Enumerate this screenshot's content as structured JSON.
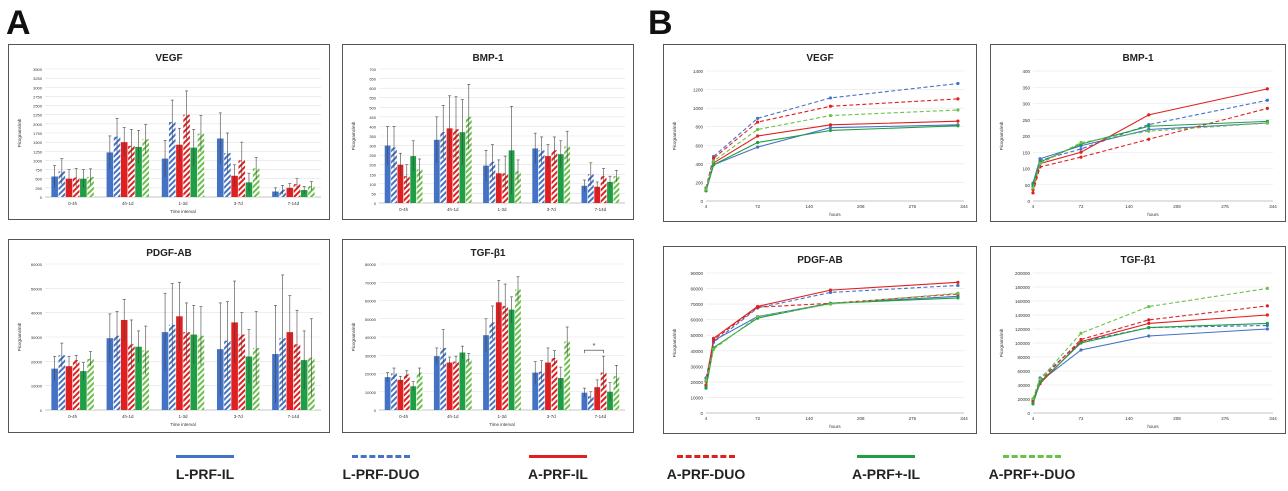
{
  "panels": {
    "a": "A",
    "b": "B"
  },
  "series_styles": [
    {
      "color": "#4472C4",
      "style": "solid"
    },
    {
      "color": "#4472C4",
      "style": "dashed"
    },
    {
      "color": "#E02020",
      "style": "solid"
    },
    {
      "color": "#E02020",
      "style": "dashed"
    },
    {
      "color": "#1E9E45",
      "style": "solid"
    },
    {
      "color": "#6CC04A",
      "style": "dashed"
    }
  ],
  "legend": [
    "L-PRF-IL",
    "L-PRF-DUO",
    "A-PRF-IL",
    "A-PRF-DUO",
    "A-PRF+-IL",
    "A-PRF+-DUO"
  ],
  "chart_data": [
    {
      "type": "bar",
      "title": "VEGF",
      "ylabel": "Picograms/mb",
      "xlabel": "Time interval",
      "categories": [
        "0-4h",
        "4h-1d",
        "1-3d",
        "3-7d",
        "7-14d"
      ],
      "ylim": [
        0,
        3500
      ],
      "yticks": [
        0,
        250,
        500,
        750,
        1000,
        1250,
        1500,
        1750,
        2000,
        2250,
        2500,
        2750,
        3000,
        3250,
        3500
      ],
      "series": [
        {
          "values": [
            560,
            1220,
            1050,
            1600,
            150
          ],
          "errors": [
            300,
            450,
            500,
            700,
            100
          ]
        },
        {
          "values": [
            700,
            1650,
            2050,
            1200,
            200
          ],
          "errors": [
            350,
            500,
            600,
            550,
            120
          ]
        },
        {
          "values": [
            500,
            1500,
            1430,
            580,
            250
          ],
          "errors": [
            250,
            400,
            450,
            300,
            120
          ]
        },
        {
          "values": [
            530,
            1400,
            2250,
            1000,
            350
          ],
          "errors": [
            250,
            450,
            650,
            500,
            150
          ]
        },
        {
          "values": [
            500,
            1370,
            1350,
            400,
            190
          ],
          "errors": [
            250,
            450,
            500,
            250,
            100
          ]
        },
        {
          "values": [
            550,
            1580,
            1730,
            780,
            300
          ],
          "errors": [
            220,
            400,
            500,
            300,
            120
          ]
        }
      ]
    },
    {
      "type": "bar",
      "title": "BMP-1",
      "ylabel": "Picograms/mb",
      "xlabel": "",
      "categories": [
        "0-4h",
        "4h-1d",
        "1-3d",
        "3-7d",
        "7-14d"
      ],
      "ylim": [
        0,
        700
      ],
      "yticks": [
        0,
        50,
        100,
        150,
        200,
        250,
        300,
        350,
        400,
        450,
        500,
        550,
        600,
        650,
        700
      ],
      "series": [
        {
          "values": [
            300,
            330,
            195,
            285,
            90
          ],
          "errors": [
            100,
            120,
            80,
            80,
            30
          ]
        },
        {
          "values": [
            290,
            370,
            215,
            275,
            150
          ],
          "errors": [
            110,
            140,
            90,
            70,
            60
          ]
        },
        {
          "values": [
            200,
            390,
            155,
            245,
            85
          ],
          "errors": [
            60,
            170,
            70,
            60,
            25
          ]
        },
        {
          "values": [
            140,
            385,
            155,
            275,
            140
          ],
          "errors": [
            60,
            170,
            90,
            70,
            40
          ]
        },
        {
          "values": [
            245,
            370,
            275,
            255,
            110
          ],
          "errors": [
            80,
            170,
            230,
            70,
            30
          ]
        },
        {
          "values": [
            175,
            450,
            165,
            295,
            140
          ],
          "errors": [
            55,
            170,
            60,
            80,
            30
          ]
        }
      ]
    },
    {
      "type": "bar",
      "title": "PDGF-AB",
      "ylabel": "Picograms/mb",
      "xlabel": "Time interval",
      "categories": [
        "0-4h",
        "4h-1d",
        "1-3d",
        "3-7d",
        "7-14d"
      ],
      "ylim": [
        0,
        60000
      ],
      "yticks": [
        0,
        10000,
        20000,
        30000,
        40000,
        50000,
        60000
      ],
      "series": [
        {
          "values": [
            17000,
            29500,
            32000,
            25000,
            23000
          ],
          "errors": [
            5000,
            10000,
            16000,
            19000,
            20000
          ]
        },
        {
          "values": [
            22500,
            30500,
            35000,
            28500,
            29500
          ],
          "errors": [
            5000,
            10000,
            17000,
            16000,
            26000
          ]
        },
        {
          "values": [
            18000,
            37000,
            38500,
            36000,
            32000
          ],
          "errors": [
            4000,
            8500,
            14000,
            17000,
            15000
          ]
        },
        {
          "values": [
            20500,
            27000,
            32000,
            31000,
            27000
          ],
          "errors": [
            2000,
            10000,
            12000,
            9000,
            14000
          ]
        },
        {
          "values": [
            16000,
            26000,
            31000,
            22000,
            20500
          ],
          "errors": [
            3500,
            6500,
            12000,
            11000,
            12000
          ]
        },
        {
          "values": [
            21000,
            24500,
            30500,
            25500,
            21500
          ],
          "errors": [
            3000,
            10000,
            12000,
            15000,
            16000
          ]
        }
      ]
    },
    {
      "type": "bar",
      "title": "TGF-β1",
      "ylabel": "Picograms/mb",
      "xlabel": "Time interval",
      "categories": [
        "0-4h",
        "4h-1d",
        "1-3d",
        "3-7d",
        "7-14d"
      ],
      "ylim": [
        0,
        80000
      ],
      "yticks": [
        0,
        10000,
        20000,
        30000,
        40000,
        50000,
        60000,
        70000,
        80000
      ],
      "annotation": "*",
      "series": [
        {
          "values": [
            18000,
            29500,
            41000,
            20500,
            9500
          ],
          "errors": [
            2500,
            4500,
            9000,
            6000,
            2500
          ]
        },
        {
          "values": [
            20000,
            34000,
            48000,
            21000,
            7500
          ],
          "errors": [
            3000,
            10000,
            9000,
            6000,
            2500
          ]
        },
        {
          "values": [
            16500,
            26000,
            59000,
            26000,
            12500
          ],
          "errors": [
            2000,
            3000,
            12000,
            8000,
            4000
          ]
        },
        {
          "values": [
            19500,
            26500,
            57000,
            28500,
            20500
          ],
          "errors": [
            2000,
            3000,
            12000,
            4000,
            9000
          ]
        },
        {
          "values": [
            13000,
            31500,
            55000,
            17500,
            10000
          ],
          "errors": [
            2500,
            3500,
            7000,
            6000,
            5000
          ]
        },
        {
          "values": [
            20500,
            28000,
            66000,
            37500,
            18500
          ],
          "errors": [
            2500,
            3000,
            7000,
            8000,
            6000
          ]
        }
      ]
    },
    {
      "type": "line",
      "title": "VEGF",
      "ylabel": "Picograms/mb",
      "xlabel": "hours",
      "x": [
        1,
        14,
        72,
        168,
        336
      ],
      "xticks": [
        4,
        72,
        140,
        208,
        276,
        344
      ],
      "xlim": [
        4,
        344
      ],
      "ylim": [
        0,
        1400
      ],
      "yticks": [
        0,
        200,
        400,
        600,
        800,
        1000,
        1200,
        1400
      ],
      "series": [
        {
          "values": [
            110,
            390,
            580,
            790,
            820
          ]
        },
        {
          "values": [
            140,
            480,
            890,
            1110,
            1265
          ]
        },
        {
          "values": [
            115,
            410,
            700,
            820,
            860
          ]
        },
        {
          "values": [
            130,
            460,
            850,
            1020,
            1100
          ]
        },
        {
          "values": [
            110,
            390,
            630,
            760,
            810
          ]
        },
        {
          "values": [
            125,
            430,
            770,
            920,
            980
          ]
        }
      ]
    },
    {
      "type": "line",
      "title": "BMP-1",
      "ylabel": "Picograms/mb",
      "xlabel": "hours",
      "x": [
        1,
        14,
        72,
        168,
        336
      ],
      "xticks": [
        4,
        72,
        140,
        208,
        276,
        344
      ],
      "xlim": [
        4,
        344
      ],
      "ylim": [
        0,
        400
      ],
      "yticks": [
        0,
        50,
        100,
        150,
        200,
        250,
        300,
        350,
        400
      ],
      "series": [
        {
          "values": [
            55,
            130,
            170,
            220,
            240
          ]
        },
        {
          "values": [
            45,
            125,
            160,
            235,
            310
          ]
        },
        {
          "values": [
            35,
            115,
            150,
            265,
            345
          ]
        },
        {
          "values": [
            25,
            105,
            135,
            190,
            285
          ]
        },
        {
          "values": [
            50,
            120,
            175,
            230,
            245
          ]
        },
        {
          "values": [
            40,
            115,
            180,
            215,
            240
          ]
        }
      ]
    },
    {
      "type": "line",
      "title": "PDGF-AB",
      "ylabel": "Picograms/mb",
      "xlabel": "hours",
      "x": [
        1,
        14,
        72,
        168,
        336
      ],
      "xticks": [
        4,
        72,
        140,
        208,
        276,
        344
      ],
      "xlim": [
        4,
        344
      ],
      "ylim": [
        0,
        90000
      ],
      "yticks": [
        0,
        10000,
        20000,
        30000,
        40000,
        50000,
        60000,
        70000,
        80000,
        90000
      ],
      "series": [
        {
          "values": [
            17000,
            46500,
            62000,
            70500,
            75000
          ]
        },
        {
          "values": [
            22500,
            45500,
            67500,
            77500,
            82000
          ]
        },
        {
          "values": [
            18000,
            48000,
            68500,
            79000,
            84000
          ]
        },
        {
          "values": [
            20500,
            47000,
            68000,
            70500,
            76500
          ]
        },
        {
          "values": [
            16000,
            42000,
            61000,
            70500,
            74000
          ]
        },
        {
          "values": [
            21000,
            41000,
            62000,
            70000,
            77000
          ]
        }
      ]
    },
    {
      "type": "line",
      "title": "TGF-β1",
      "ylabel": "Picograms/mb",
      "xlabel": "hours",
      "x": [
        1,
        14,
        72,
        168,
        336
      ],
      "xticks": [
        4,
        72,
        140,
        208,
        276,
        344
      ],
      "xlim": [
        4,
        344
      ],
      "ylim": [
        0,
        200000
      ],
      "yticks": [
        0,
        20000,
        40000,
        60000,
        80000,
        100000,
        120000,
        140000,
        160000,
        180000,
        200000
      ],
      "series": [
        {
          "values": [
            18000,
            45000,
            90000,
            110000,
            120000
          ]
        },
        {
          "values": [
            20000,
            50000,
            102000,
            122000,
            125000
          ]
        },
        {
          "values": [
            16500,
            42000,
            102000,
            128000,
            140000
          ]
        },
        {
          "values": [
            19500,
            46000,
            105000,
            133000,
            153000
          ]
        },
        {
          "values": [
            13000,
            44000,
            100000,
            122000,
            128000
          ]
        },
        {
          "values": [
            20500,
            48000,
            114000,
            152000,
            178000
          ]
        }
      ]
    }
  ]
}
